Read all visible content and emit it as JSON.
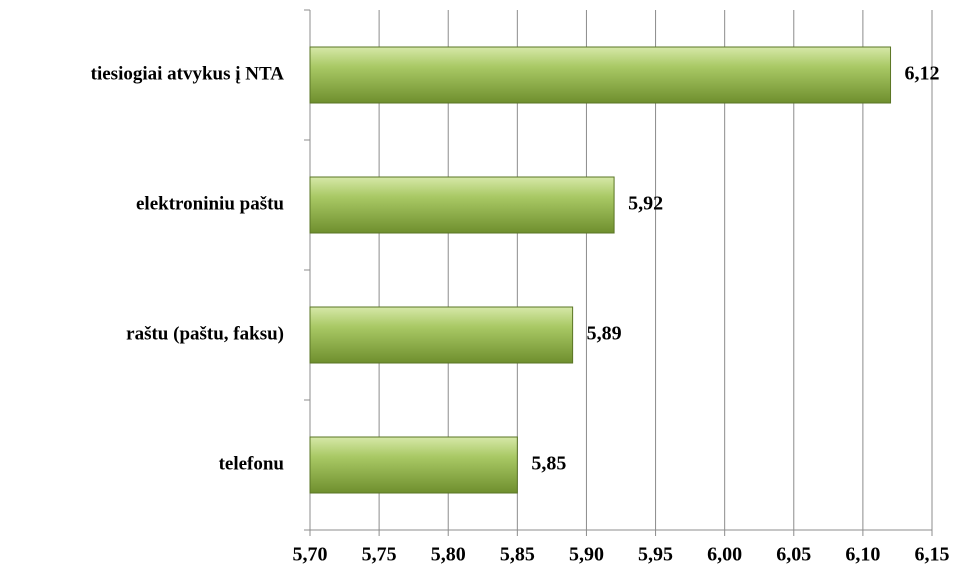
{
  "chart_data": {
    "type": "barh",
    "categories": [
      "tiesiogiai atvykus į NTA",
      "elektroniniu paštu",
      "raštu (paštu, faksu)",
      "telefonu"
    ],
    "values": [
      6.12,
      5.92,
      5.89,
      5.85
    ],
    "value_labels": [
      "6,12",
      "5,92",
      "5,89",
      "5,85"
    ],
    "color": "#9bbb59",
    "xlim": [
      5.7,
      6.15
    ],
    "xticks": [
      {
        "value": 5.7,
        "label": "5,70"
      },
      {
        "value": 5.75,
        "label": "5,75"
      },
      {
        "value": 5.8,
        "label": "5,80"
      },
      {
        "value": 5.85,
        "label": "5,85"
      },
      {
        "value": 5.9,
        "label": "5,90"
      },
      {
        "value": 5.95,
        "label": "5,95"
      },
      {
        "value": 6.0,
        "label": "6,00"
      },
      {
        "value": 6.05,
        "label": "6,05"
      },
      {
        "value": 6.1,
        "label": "6,10"
      },
      {
        "value": 6.15,
        "label": "6,15"
      }
    ],
    "grid": true
  }
}
